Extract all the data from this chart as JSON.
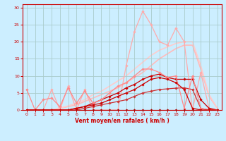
{
  "xlabel": "Vent moyen/en rafales ( km/h )",
  "background_color": "#cceeff",
  "grid_color": "#aacccc",
  "axis_color": "#cc0000",
  "text_color": "#cc0000",
  "xlim": [
    -0.5,
    23.5
  ],
  "ylim": [
    0,
    31
  ],
  "yticks": [
    0,
    5,
    10,
    15,
    20,
    25,
    30
  ],
  "xticks": [
    0,
    1,
    2,
    3,
    4,
    5,
    6,
    7,
    8,
    9,
    10,
    11,
    12,
    13,
    14,
    15,
    16,
    17,
    18,
    19,
    20,
    21,
    22,
    23
  ],
  "lines": [
    {
      "x": [
        0,
        1,
        2,
        3,
        4,
        5,
        6,
        7,
        8,
        9,
        10,
        11,
        12,
        13,
        14,
        15,
        16,
        17,
        18,
        19,
        20,
        21,
        22,
        23
      ],
      "y": [
        0,
        0,
        0,
        0,
        0,
        0,
        0,
        0,
        0,
        0,
        0,
        0,
        0,
        0,
        0,
        0,
        0,
        0,
        0,
        0,
        0,
        0,
        0,
        0
      ],
      "color": "#aa0000",
      "lw": 0.8,
      "marker": "D",
      "ms": 1.8,
      "zorder": 4
    },
    {
      "x": [
        0,
        1,
        2,
        3,
        4,
        5,
        6,
        7,
        8,
        9,
        10,
        11,
        12,
        13,
        14,
        15,
        16,
        17,
        18,
        19,
        20,
        21,
        22,
        23
      ],
      "y": [
        0,
        0,
        0,
        0,
        0,
        0,
        0.5,
        1,
        1.5,
        2,
        3,
        4,
        5,
        6,
        7.5,
        9,
        9.5,
        9,
        8,
        6,
        0.5,
        0,
        0,
        0
      ],
      "color": "#cc0000",
      "lw": 0.9,
      "marker": "D",
      "ms": 1.8,
      "zorder": 4
    },
    {
      "x": [
        0,
        1,
        2,
        3,
        4,
        5,
        6,
        7,
        8,
        9,
        10,
        11,
        12,
        13,
        14,
        15,
        16,
        17,
        18,
        19,
        20,
        21,
        22,
        23
      ],
      "y": [
        0,
        0,
        0,
        0,
        0,
        0,
        0.5,
        1,
        2,
        3,
        4,
        5,
        6.5,
        7.5,
        9,
        10,
        10.5,
        9.5,
        9,
        9,
        9,
        3,
        0.5,
        0
      ],
      "color": "#cc0000",
      "lw": 0.9,
      "marker": "D",
      "ms": 1.8,
      "zorder": 3
    },
    {
      "x": [
        0,
        1,
        2,
        3,
        4,
        5,
        6,
        7,
        8,
        9,
        10,
        11,
        12,
        13,
        14,
        15,
        16,
        17,
        18,
        19,
        20,
        21,
        22,
        23
      ],
      "y": [
        0,
        0,
        0,
        0,
        0,
        0,
        0,
        0.5,
        1,
        1.5,
        2,
        2.5,
        3,
        4,
        5,
        5.5,
        6,
        6.2,
        6.4,
        6.5,
        6,
        0.5,
        0,
        0
      ],
      "color": "#cc3333",
      "lw": 0.9,
      "marker": "D",
      "ms": 1.8,
      "zorder": 3
    },
    {
      "x": [
        0,
        1,
        2,
        3,
        4,
        5,
        6,
        7,
        8,
        9,
        10,
        11,
        12,
        13,
        14,
        15,
        16,
        17,
        18,
        19,
        20,
        21,
        22,
        23
      ],
      "y": [
        6,
        0,
        3,
        3.5,
        1,
        6.5,
        2,
        5.5,
        2,
        3,
        5,
        7,
        8,
        10,
        12,
        12,
        11,
        9.5,
        10,
        0.5,
        10,
        0.5,
        0,
        0
      ],
      "color": "#ff8888",
      "lw": 0.9,
      "marker": "D",
      "ms": 1.8,
      "zorder": 3
    },
    {
      "x": [
        0,
        1,
        2,
        3,
        4,
        5,
        6,
        7,
        8,
        9,
        10,
        11,
        12,
        13,
        14,
        15,
        16,
        17,
        18,
        19,
        20,
        21,
        22,
        23
      ],
      "y": [
        0,
        0,
        0,
        6,
        0,
        7,
        0,
        6,
        0,
        0,
        0,
        0,
        13,
        23,
        29,
        25,
        20,
        19,
        24,
        20,
        0,
        11,
        0.5,
        0
      ],
      "color": "#ffaaaa",
      "lw": 0.9,
      "marker": "D",
      "ms": 1.8,
      "zorder": 2
    },
    {
      "x": [
        0,
        1,
        2,
        3,
        4,
        5,
        6,
        7,
        8,
        9,
        10,
        11,
        12,
        13,
        14,
        15,
        16,
        17,
        18,
        19,
        20,
        21,
        22,
        23
      ],
      "y": [
        0,
        0,
        0,
        0,
        0.5,
        1,
        1.5,
        2.5,
        3.5,
        4.5,
        5.5,
        6.5,
        8,
        9.5,
        11,
        13,
        15,
        16.5,
        18,
        19,
        19,
        12,
        4,
        0.5
      ],
      "color": "#ffbbbb",
      "lw": 1.2,
      "marker": null,
      "ms": 0,
      "zorder": 1
    },
    {
      "x": [
        0,
        1,
        2,
        3,
        4,
        5,
        6,
        7,
        8,
        9,
        10,
        11,
        12,
        13,
        14,
        15,
        16,
        17,
        18,
        19,
        20,
        21,
        22,
        23
      ],
      "y": [
        0,
        0,
        0,
        0,
        0.5,
        1.2,
        2,
        3,
        4.5,
        5.5,
        7,
        8.5,
        10,
        12,
        14,
        16,
        17.5,
        18.5,
        19.5,
        20,
        20,
        13,
        4.5,
        0.5
      ],
      "color": "#ffcccc",
      "lw": 1.2,
      "marker": null,
      "ms": 0,
      "zorder": 1
    }
  ]
}
